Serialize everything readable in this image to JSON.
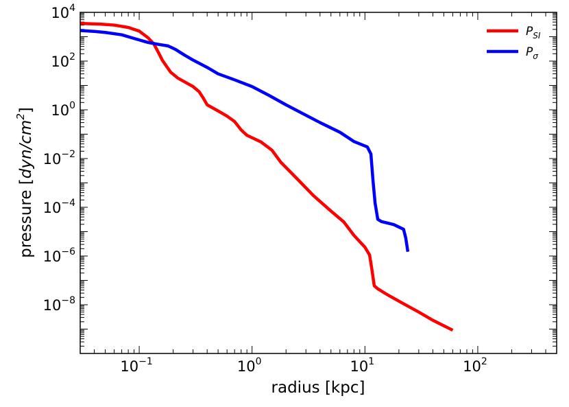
{
  "chart_data": {
    "type": "line",
    "xscale": "log",
    "yscale": "log",
    "xlim": [
      0.03,
      500
    ],
    "ylim": [
      1e-10,
      10000
    ],
    "xlabel_text": "radius [kpc]",
    "ylabel_prefix": "pressure [",
    "ylabel_math": "dyn/cm",
    "ylabel_sup": "2",
    "ylabel_suffix": "]",
    "x_ticks": [
      {
        "base": "10",
        "exp": "−1",
        "value": 0.1
      },
      {
        "base": "10",
        "exp": "0",
        "value": 1
      },
      {
        "base": "10",
        "exp": "1",
        "value": 10
      },
      {
        "base": "10",
        "exp": "2",
        "value": 100
      }
    ],
    "y_ticks": [
      {
        "base": "10",
        "exp": "4",
        "value": 10000
      },
      {
        "base": "10",
        "exp": "2",
        "value": 100
      },
      {
        "base": "10",
        "exp": "0",
        "value": 1
      },
      {
        "base": "10",
        "exp": "−2",
        "value": 0.01
      },
      {
        "base": "10",
        "exp": "−4",
        "value": 0.0001
      },
      {
        "base": "10",
        "exp": "−6",
        "value": 1e-06
      },
      {
        "base": "10",
        "exp": "−8",
        "value": 1e-08
      }
    ],
    "legend_position": "top-right",
    "series": [
      {
        "name_base": "P",
        "name_sub": "SI",
        "color": "#ff0000",
        "points": [
          [
            0.03,
            3500
          ],
          [
            0.045,
            3300
          ],
          [
            0.06,
            3000
          ],
          [
            0.08,
            2400
          ],
          [
            0.1,
            1700
          ],
          [
            0.12,
            900
          ],
          [
            0.135,
            500
          ],
          [
            0.15,
            200
          ],
          [
            0.16,
            110
          ],
          [
            0.175,
            60
          ],
          [
            0.19,
            35
          ],
          [
            0.22,
            20
          ],
          [
            0.26,
            13
          ],
          [
            0.3,
            9
          ],
          [
            0.34,
            5.5
          ],
          [
            0.37,
            3
          ],
          [
            0.4,
            1.6
          ],
          [
            0.5,
            0.9
          ],
          [
            0.6,
            0.55
          ],
          [
            0.7,
            0.33
          ],
          [
            0.8,
            0.15
          ],
          [
            0.9,
            0.09
          ],
          [
            1.2,
            0.048
          ],
          [
            1.5,
            0.022
          ],
          [
            1.8,
            0.007
          ],
          [
            2.5,
            0.0015
          ],
          [
            3.5,
            0.0003
          ],
          [
            5,
            7e-05
          ],
          [
            6.5,
            2.5e-05
          ],
          [
            8,
            7e-06
          ],
          [
            10,
            2.3e-06
          ],
          [
            11,
            1.1e-06
          ],
          [
            11.5,
            3e-07
          ],
          [
            12.1,
            6e-08
          ],
          [
            13,
            4.5e-08
          ],
          [
            16,
            2.5e-08
          ],
          [
            22,
            1.1e-08
          ],
          [
            30,
            5e-09
          ],
          [
            40,
            2.3e-09
          ],
          [
            60,
            9e-10
          ]
        ]
      },
      {
        "name_base": "P",
        "name_sub": "σ",
        "color": "#0000ff",
        "points": [
          [
            0.03,
            1800
          ],
          [
            0.04,
            1650
          ],
          [
            0.05,
            1500
          ],
          [
            0.07,
            1200
          ],
          [
            0.09,
            850
          ],
          [
            0.12,
            580
          ],
          [
            0.15,
            480
          ],
          [
            0.18,
            420
          ],
          [
            0.21,
            300
          ],
          [
            0.25,
            180
          ],
          [
            0.3,
            110
          ],
          [
            0.4,
            55
          ],
          [
            0.5,
            30
          ],
          [
            0.7,
            17
          ],
          [
            1.0,
            9
          ],
          [
            1.4,
            4
          ],
          [
            2.0,
            1.6
          ],
          [
            3.0,
            0.6
          ],
          [
            4.0,
            0.3
          ],
          [
            6.0,
            0.12
          ],
          [
            8.0,
            0.05
          ],
          [
            10.5,
            0.03
          ],
          [
            11.3,
            0.0154
          ],
          [
            11.8,
            0.0012
          ],
          [
            12.3,
            0.00015
          ],
          [
            13.0,
            3.2e-05
          ],
          [
            14.0,
            2.6e-05
          ],
          [
            18.0,
            1.95e-05
          ],
          [
            22.0,
            1.25e-05
          ],
          [
            23.0,
            5.5e-06
          ],
          [
            24.0,
            1.5e-06
          ]
        ]
      }
    ]
  }
}
